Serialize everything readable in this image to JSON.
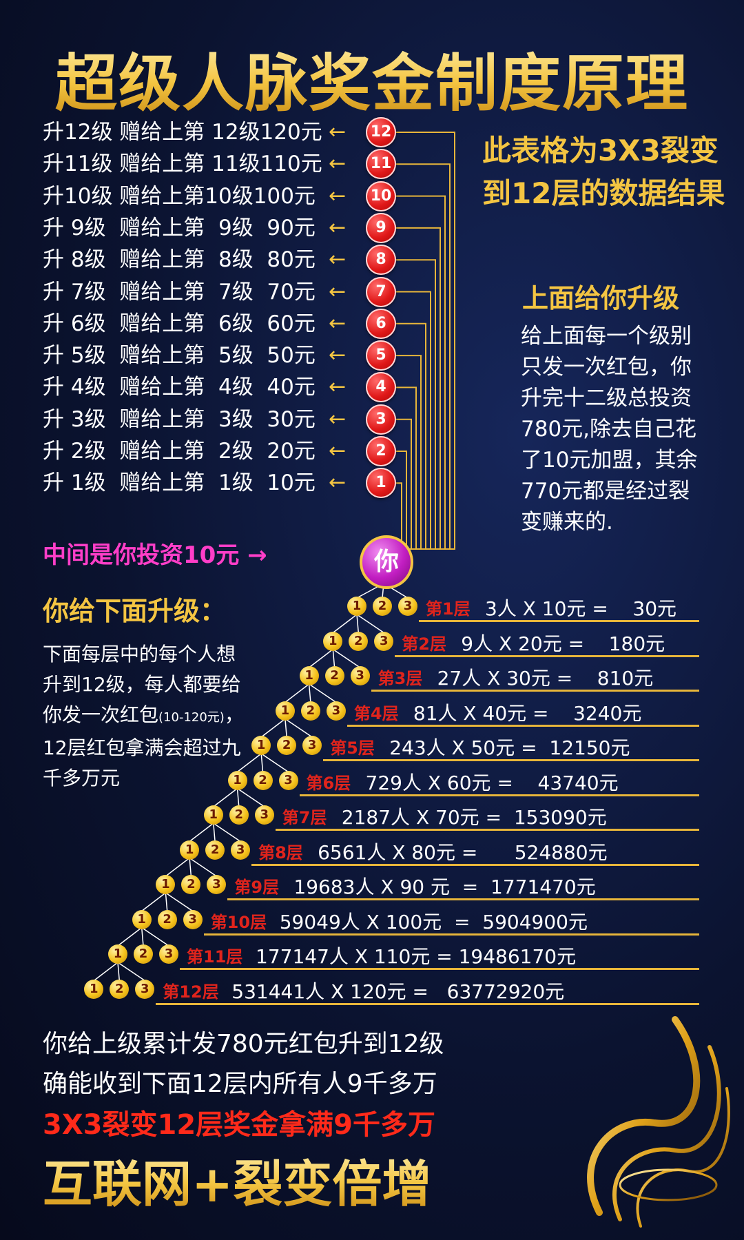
{
  "title": "超级人脉奖金制度原理",
  "colors": {
    "gold": "#f4c542",
    "red": "#e01818",
    "magenta": "#ff3ec8",
    "background": "#0b1330"
  },
  "upgrade_levels": [
    {
      "badge": "12",
      "text": "升12级 赠给上第 12级120元"
    },
    {
      "badge": "11",
      "text": "升11级 赠给上第 11级110元"
    },
    {
      "badge": "10",
      "text": "升10级 赠给上第10级100元"
    },
    {
      "badge": "9",
      "text": "升 9级  赠给上第  9级  90元"
    },
    {
      "badge": "8",
      "text": "升 8级  赠给上第  8级  80元"
    },
    {
      "badge": "7",
      "text": "升 7级  赠给上第  7级  70元"
    },
    {
      "badge": "6",
      "text": "升 6级  赠给上第  6级  60元"
    },
    {
      "badge": "5",
      "text": "升 5级  赠给上第  5级  50元"
    },
    {
      "badge": "4",
      "text": "升 4级  赠给上第  4级  40元"
    },
    {
      "badge": "3",
      "text": "升 3级  赠给上第  3级  30元"
    },
    {
      "badge": "2",
      "text": "升 2级  赠给上第  2级  20元"
    },
    {
      "badge": "1",
      "text": "升 1级  赠给上第  1级  10元"
    }
  ],
  "arrow_glyph": "←",
  "you_label": "你",
  "invest_text": "中间是你投资10元 →",
  "side_title": "此表格为3X3裂变到12层的数据结果",
  "up_section": {
    "title": "上面给你升级",
    "text": "给上面每一个级别只发一次红包，你升完十二级总投资780元,除去自己花了10元加盟，其余770元都是经过裂变赚来的."
  },
  "down_section": {
    "title": "你给下面升级：",
    "text_before": "下面每层中的每个人想升到12级，每人都要给你发一次红包",
    "text_small": "(10-120元)",
    "text_after": "，12层红包拿满会超过九千多万元"
  },
  "node_labels": [
    "1",
    "2",
    "3"
  ],
  "tiers": [
    {
      "layer": "第1层",
      "calc": "3人 X 10元 =    30元"
    },
    {
      "layer": "第2层",
      "calc": "9人 X 20元 =    180元"
    },
    {
      "layer": "第3层",
      "calc": "27人 X 30元 =    810元"
    },
    {
      "layer": "第4层",
      "calc": "81人 X 40元 =    3240元"
    },
    {
      "layer": "第5层",
      "calc": "243人 X 50元 =  12150元"
    },
    {
      "layer": "第6层",
      "calc": "729人 X 60元 =    43740元"
    },
    {
      "layer": "第7层",
      "calc": "2187人 X 70元 =  153090元"
    },
    {
      "layer": "第8层",
      "calc": "6561人 X 80元 =      524880元"
    },
    {
      "layer": "第9层",
      "calc": "19683人 X 90 元  =  1771470元"
    },
    {
      "layer": "第10层",
      "calc": "59049人 X 100元  =  5904900元"
    },
    {
      "layer": "第11层",
      "calc": "177147人 X 110元 = 19486170元"
    },
    {
      "layer": "第12层",
      "calc": "531441人 X 120元 =   63772920元"
    }
  ],
  "footer": {
    "line1": "你给上级累计发780元红包升到12级",
    "line2": "确能收到下面12层内所有人9千多万",
    "line3": "3X3裂变12层奖金拿满9千多万",
    "line4": "互联网+裂变倍增"
  }
}
